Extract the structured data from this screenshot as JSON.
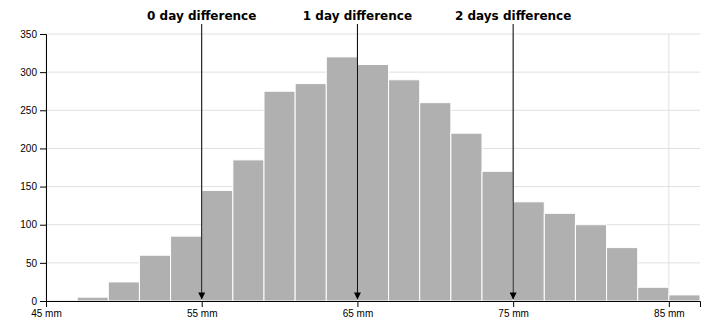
{
  "chart_data": {
    "type": "histogram",
    "bins": [
      47,
      49,
      51,
      53,
      55,
      57,
      59,
      61,
      63,
      65,
      67,
      69,
      71,
      73,
      75,
      77,
      79,
      81,
      83,
      85,
      87
    ],
    "values": [
      5,
      25,
      60,
      85,
      145,
      185,
      275,
      285,
      320,
      310,
      290,
      260,
      220,
      170,
      130,
      115,
      100,
      70,
      18,
      8
    ],
    "color": "#b0b0b0",
    "xlim": [
      45,
      87
    ],
    "xticks": [
      {
        "value": 45,
        "label": "45 mm"
      },
      {
        "value": 55,
        "label": "55 mm"
      },
      {
        "value": 65,
        "label": "65 mm"
      },
      {
        "value": 75,
        "label": "75 mm"
      },
      {
        "value": 85,
        "label": "85 mm"
      }
    ],
    "ylim": [
      0,
      350
    ],
    "yticks": [
      0,
      50,
      100,
      150,
      200,
      250,
      300,
      350
    ],
    "grid": true,
    "annotations": [
      {
        "text": "0 day difference",
        "x": 55,
        "y": 2
      },
      {
        "text": "1 day difference",
        "x": 65,
        "y": 2
      },
      {
        "text": "2 days difference",
        "x": 75,
        "y": 2
      }
    ]
  }
}
